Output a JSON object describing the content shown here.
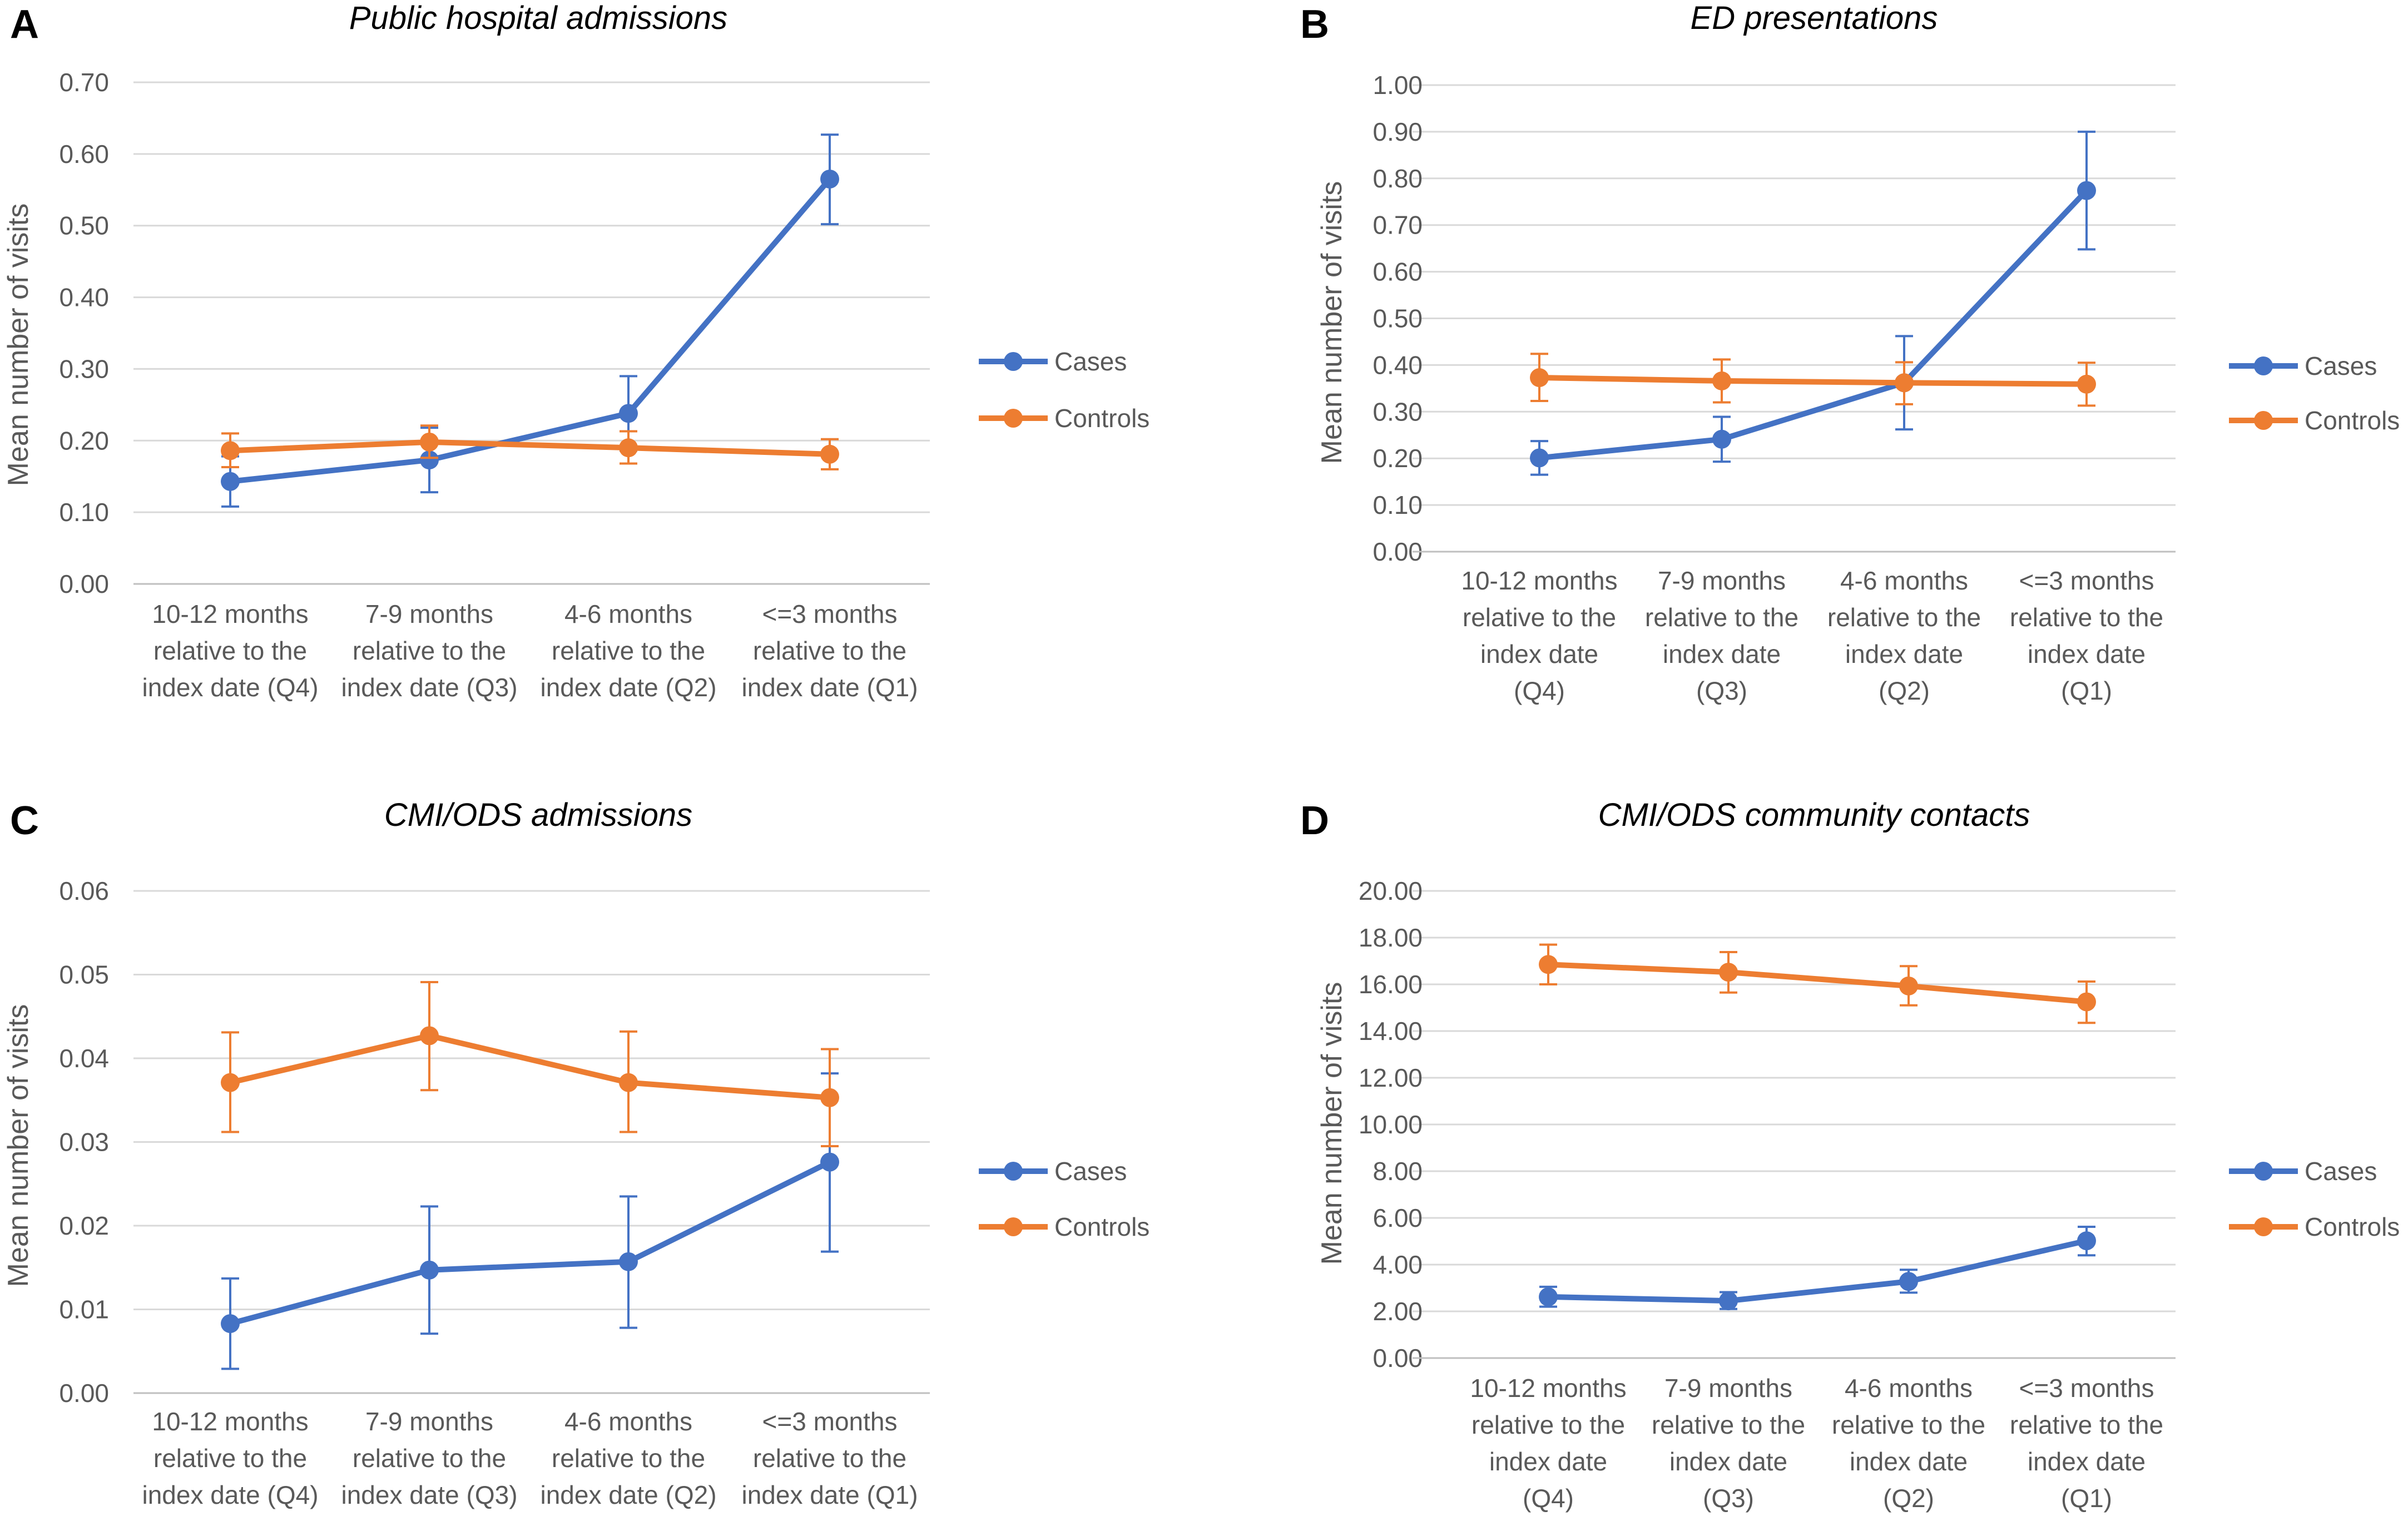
{
  "chart_data": [
    {
      "panel_letter": "A",
      "type": "line",
      "title": "Public hospital admissions",
      "ylabel": "Mean number of visits",
      "ylim": [
        0,
        0.7
      ],
      "yticks": [
        "0.00",
        "0.10",
        "0.20",
        "0.30",
        "0.40",
        "0.50",
        "0.60",
        "0.70"
      ],
      "categories": [
        [
          "10-12 months",
          "relative to the",
          "index date (Q4)"
        ],
        [
          "7-9 months",
          "relative to the",
          "index date (Q3)"
        ],
        [
          "4-6 months",
          "relative to the",
          "index date (Q2)"
        ],
        [
          "<=3 months",
          "relative to the",
          "index date (Q1)"
        ]
      ],
      "series": [
        {
          "name": "Cases",
          "color": "#4472C4",
          "values": [
            0.143,
            0.173,
            0.238,
            0.565
          ],
          "err_low": [
            0.108,
            0.128,
            0.186,
            0.502
          ],
          "err_high": [
            0.178,
            0.218,
            0.29,
            0.627
          ]
        },
        {
          "name": "Controls",
          "color": "#ED7D31",
          "values": [
            0.186,
            0.198,
            0.19,
            0.181
          ],
          "err_low": [
            0.163,
            0.176,
            0.168,
            0.16
          ],
          "err_high": [
            0.21,
            0.221,
            0.213,
            0.202
          ]
        }
      ]
    },
    {
      "panel_letter": "B",
      "type": "line",
      "title": "ED presentations",
      "ylabel": "Mean number of visits",
      "ylim": [
        0,
        1.0
      ],
      "yticks": [
        "0.00",
        "0.10",
        "0.20",
        "0.30",
        "0.40",
        "0.50",
        "0.60",
        "0.70",
        "0.80",
        "0.90",
        "1.00"
      ],
      "categories": [
        [
          "10-12 months",
          "relative to the",
          "index date",
          "(Q4)"
        ],
        [
          "7-9 months",
          "relative to the",
          "index date",
          "(Q3)"
        ],
        [
          "4-6 months",
          "relative to the",
          "index date",
          "(Q2)"
        ],
        [
          "<=3 months",
          "relative to the",
          "index date",
          "(Q1)"
        ]
      ],
      "series": [
        {
          "name": "Cases",
          "color": "#4472C4",
          "values": [
            0.201,
            0.241,
            0.362,
            0.774
          ],
          "err_low": [
            0.165,
            0.193,
            0.262,
            0.648
          ],
          "err_high": [
            0.237,
            0.289,
            0.462,
            0.9
          ]
        },
        {
          "name": "Controls",
          "color": "#ED7D31",
          "values": [
            0.373,
            0.366,
            0.362,
            0.359
          ],
          "err_low": [
            0.323,
            0.32,
            0.316,
            0.313
          ],
          "err_high": [
            0.424,
            0.412,
            0.406,
            0.405
          ]
        }
      ]
    },
    {
      "panel_letter": "C",
      "type": "line",
      "title": "CMI/ODS admissions",
      "ylabel": "Mean number of visits",
      "ylim": [
        0,
        0.06
      ],
      "yticks": [
        "0.00",
        "0.01",
        "0.02",
        "0.03",
        "0.04",
        "0.05",
        "0.06"
      ],
      "categories": [
        [
          "10-12 months",
          "relative to the",
          "index date (Q4)"
        ],
        [
          "7-9 months",
          "relative to the",
          "index date (Q3)"
        ],
        [
          "4-6 months",
          "relative to the",
          "index date (Q2)"
        ],
        [
          "<=3 months",
          "relative to the",
          "index date (Q1)"
        ]
      ],
      "series": [
        {
          "name": "Cases",
          "color": "#4472C4",
          "values": [
            0.0083,
            0.0147,
            0.0157,
            0.0276
          ],
          "err_low": [
            0.0029,
            0.0071,
            0.0078,
            0.0169
          ],
          "err_high": [
            0.0137,
            0.0223,
            0.0235,
            0.0382
          ]
        },
        {
          "name": "Controls",
          "color": "#ED7D31",
          "values": [
            0.0371,
            0.0427,
            0.0371,
            0.0353
          ],
          "err_low": [
            0.0312,
            0.0362,
            0.0312,
            0.0295
          ],
          "err_high": [
            0.0431,
            0.0491,
            0.0432,
            0.0411
          ]
        }
      ]
    },
    {
      "panel_letter": "D",
      "type": "line",
      "title": "CMI/ODS community contacts",
      "ylabel": "Mean number of visits",
      "ylim": [
        0,
        20
      ],
      "yticks": [
        "0.00",
        "2.00",
        "4.00",
        "6.00",
        "8.00",
        "10.00",
        "12.00",
        "14.00",
        "16.00",
        "18.00",
        "20.00"
      ],
      "categories": [
        [
          "10-12 months",
          "relative to the",
          "index date",
          "(Q4)"
        ],
        [
          "7-9 months",
          "relative to the",
          "index date",
          "(Q3)"
        ],
        [
          "4-6 months",
          "relative to the",
          "index date",
          "(Q2)"
        ],
        [
          "<=3 months",
          "relative to the",
          "index date",
          "(Q1)"
        ]
      ],
      "series": [
        {
          "name": "Cases",
          "color": "#4472C4",
          "values": [
            2.62,
            2.45,
            3.28,
            5.02
          ],
          "err_low": [
            2.2,
            2.1,
            2.8,
            4.4
          ],
          "err_high": [
            3.05,
            2.82,
            3.78,
            5.62
          ]
        },
        {
          "name": "Controls",
          "color": "#ED7D31",
          "values": [
            16.85,
            16.52,
            15.93,
            15.25
          ],
          "err_low": [
            16.0,
            15.65,
            15.1,
            14.35
          ],
          "err_high": [
            17.7,
            17.38,
            16.78,
            16.12
          ]
        }
      ]
    }
  ]
}
